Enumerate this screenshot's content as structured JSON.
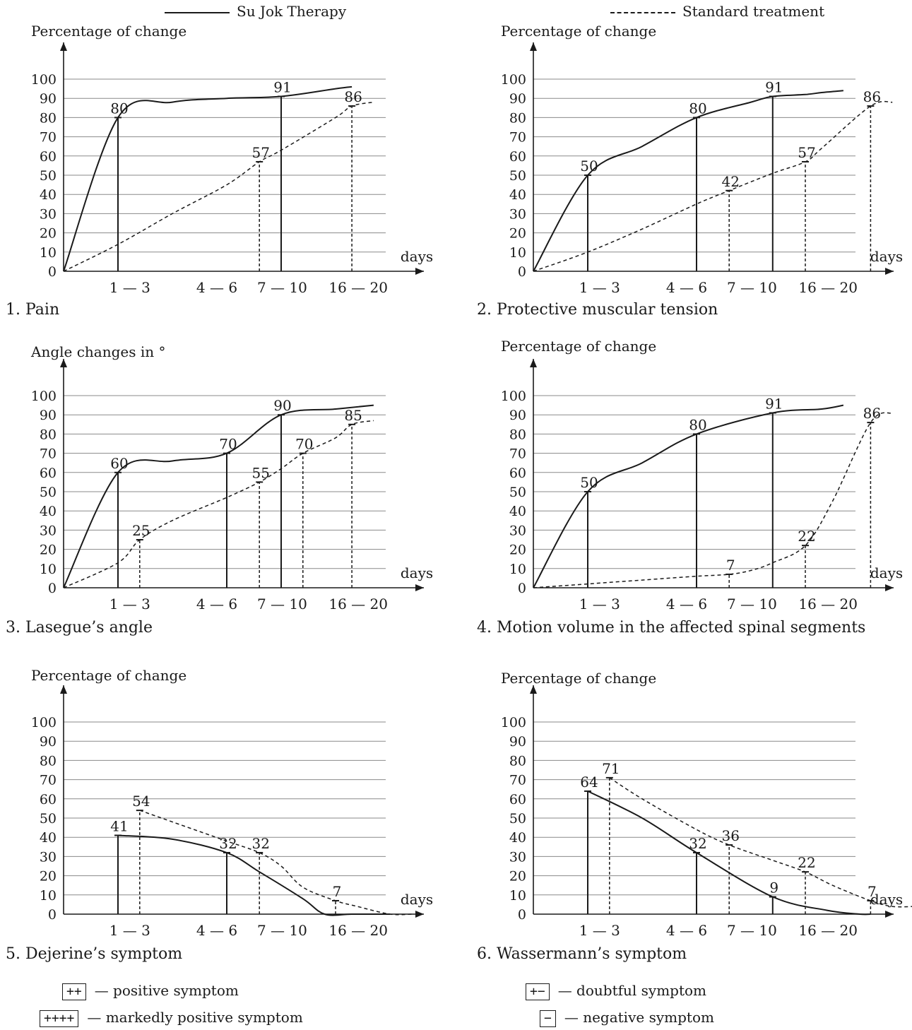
{
  "legend": {
    "su_jok": "Su Jok Therapy",
    "standard": "Standard treatment"
  },
  "symbol_legend": [
    {
      "symbol": "++",
      "text": "— positive symptom"
    },
    {
      "symbol": "++++",
      "text": "— markedly positive symptom"
    },
    {
      "symbol": "+−",
      "text": "— doubtful symptom"
    },
    {
      "symbol": "−",
      "text": "— negative symptom"
    }
  ],
  "chart_data": [
    {
      "type": "line",
      "caption": "1. Pain",
      "ylabel": "Percentage of change",
      "xlabel": "days",
      "categories": [
        "1 — 3",
        "4 — 6",
        "7 — 10",
        "16 — 20"
      ],
      "ylim": [
        0,
        100
      ],
      "yticks": [
        0,
        10,
        20,
        30,
        40,
        50,
        60,
        70,
        80,
        90,
        100
      ],
      "series": [
        {
          "name": "Su Jok Therapy",
          "style": "solid",
          "curve": [
            [
              0,
              0
            ],
            [
              1,
              80
            ],
            [
              2,
              88
            ],
            [
              3,
              90
            ],
            [
              4,
              91
            ],
            [
              5,
              95
            ],
            [
              5.3,
              96
            ]
          ],
          "labeled_points": [
            {
              "x": 1,
              "y": 80
            },
            {
              "x": 4,
              "y": 91
            }
          ]
        },
        {
          "name": "Standard treatment",
          "style": "dashed",
          "curve": [
            [
              0,
              0
            ],
            [
              1,
              14
            ],
            [
              2,
              30
            ],
            [
              3,
              45
            ],
            [
              3.6,
              57
            ],
            [
              4,
              63
            ],
            [
              5,
              80
            ],
            [
              5.3,
              86
            ],
            [
              5.7,
              88
            ]
          ],
          "labeled_points": [
            {
              "x": 3.6,
              "y": 57
            },
            {
              "x": 5.3,
              "y": 86
            }
          ]
        }
      ]
    },
    {
      "type": "line",
      "caption": "2. Protective muscular  tension",
      "ylabel": "Percentage of change",
      "xlabel": "days",
      "categories": [
        "1 — 3",
        "4 — 6",
        "7 — 10",
        "16 — 20"
      ],
      "ylim": [
        0,
        100
      ],
      "yticks": [
        0,
        10,
        20,
        30,
        40,
        50,
        60,
        70,
        80,
        90,
        100
      ],
      "series": [
        {
          "name": "Su Jok Therapy",
          "style": "solid",
          "curve": [
            [
              0,
              0
            ],
            [
              1,
              50
            ],
            [
              2,
              65
            ],
            [
              3,
              80
            ],
            [
              4,
              88
            ],
            [
              4.4,
              91
            ],
            [
              5,
              92
            ],
            [
              5.3,
              93
            ],
            [
              5.7,
              94
            ]
          ],
          "labeled_points": [
            {
              "x": 1,
              "y": 50
            },
            {
              "x": 3,
              "y": 80
            },
            {
              "x": 4.4,
              "y": 91
            }
          ]
        },
        {
          "name": "Standard treatment",
          "style": "dashed",
          "curve": [
            [
              0,
              0
            ],
            [
              1,
              10
            ],
            [
              2,
              22
            ],
            [
              3,
              35
            ],
            [
              3.6,
              42
            ],
            [
              4.4,
              51
            ],
            [
              5,
              57
            ],
            [
              5.3,
              64
            ],
            [
              6.2,
              86
            ],
            [
              6.6,
              88
            ]
          ],
          "labeled_points": [
            {
              "x": 3.6,
              "y": 42
            },
            {
              "x": 5,
              "y": 57
            },
            {
              "x": 6.2,
              "y": 86
            }
          ]
        }
      ]
    },
    {
      "type": "line",
      "caption": "3. Lasegue’s angle",
      "ylabel": "Angle changes in °",
      "xlabel": "days",
      "categories": [
        "1 — 3",
        "4 — 6",
        "7 — 10",
        "16 — 20"
      ],
      "ylim": [
        0,
        100
      ],
      "yticks": [
        0,
        10,
        20,
        30,
        40,
        50,
        60,
        70,
        80,
        90,
        100
      ],
      "series": [
        {
          "name": "Su Jok Therapy",
          "style": "solid",
          "curve": [
            [
              0,
              0
            ],
            [
              1,
              60
            ],
            [
              2,
              66
            ],
            [
              3,
              70
            ],
            [
              4,
              90
            ],
            [
              5,
              93
            ],
            [
              5.7,
              95
            ]
          ],
          "labeled_points": [
            {
              "x": 1,
              "y": 60
            },
            {
              "x": 3,
              "y": 70
            },
            {
              "x": 4,
              "y": 90
            }
          ]
        },
        {
          "name": "Standard treatment",
          "style": "dashed",
          "curve": [
            [
              0,
              0
            ],
            [
              1,
              13
            ],
            [
              1.4,
              25
            ],
            [
              2,
              35
            ],
            [
              3,
              47
            ],
            [
              3.6,
              55
            ],
            [
              4,
              62
            ],
            [
              4.4,
              70
            ],
            [
              5,
              78
            ],
            [
              5.3,
              85
            ],
            [
              5.7,
              87
            ]
          ],
          "labeled_points": [
            {
              "x": 1.4,
              "y": 25
            },
            {
              "x": 3.6,
              "y": 55
            },
            {
              "x": 4.4,
              "y": 70
            },
            {
              "x": 5.3,
              "y": 85
            }
          ]
        }
      ]
    },
    {
      "type": "line",
      "caption": "4. Motion volume in the affected spinal segments",
      "ylabel": "Percentage of change",
      "xlabel": "days",
      "categories": [
        "1 — 3",
        "4 — 6",
        "7 — 10",
        "16 — 20"
      ],
      "ylim": [
        0,
        100
      ],
      "yticks": [
        0,
        10,
        20,
        30,
        40,
        50,
        60,
        70,
        80,
        90,
        100
      ],
      "series": [
        {
          "name": "Su Jok Therapy",
          "style": "solid",
          "curve": [
            [
              0,
              0
            ],
            [
              1,
              50
            ],
            [
              2,
              65
            ],
            [
              3,
              80
            ],
            [
              4.4,
              91
            ],
            [
              5.3,
              93
            ],
            [
              5.7,
              95
            ]
          ],
          "labeled_points": [
            {
              "x": 1,
              "y": 50
            },
            {
              "x": 3,
              "y": 80
            },
            {
              "x": 4.4,
              "y": 91
            }
          ]
        },
        {
          "name": "Standard treatment",
          "style": "dashed",
          "curve": [
            [
              0,
              0
            ],
            [
              1,
              2
            ],
            [
              2,
              4
            ],
            [
              3,
              6
            ],
            [
              3.6,
              7
            ],
            [
              4,
              9
            ],
            [
              4.4,
              13
            ],
            [
              5,
              22
            ],
            [
              5.5,
              45
            ],
            [
              6.2,
              86
            ],
            [
              6.6,
              91
            ]
          ],
          "labeled_points": [
            {
              "x": 3.6,
              "y": 7
            },
            {
              "x": 5,
              "y": 22
            },
            {
              "x": 6.2,
              "y": 86
            }
          ]
        }
      ]
    },
    {
      "type": "line",
      "caption": "5. Dejerine’s symptom",
      "ylabel": "Percentage of change",
      "xlabel": "days",
      "categories": [
        "1 — 3",
        "4 — 6",
        "7 — 10",
        "16 — 20"
      ],
      "ylim": [
        0,
        100
      ],
      "yticks": [
        0,
        10,
        20,
        30,
        40,
        50,
        60,
        70,
        80,
        90,
        100
      ],
      "series": [
        {
          "name": "Su Jok Therapy",
          "style": "solid",
          "curve": [
            [
              1,
              41
            ],
            [
              2,
              39
            ],
            [
              3,
              32
            ],
            [
              3.6,
              22
            ],
            [
              4.4,
              8
            ],
            [
              4.8,
              0
            ],
            [
              5.3,
              0
            ],
            [
              6,
              0
            ]
          ],
          "labeled_points": [
            {
              "x": 1,
              "y": 41
            },
            {
              "x": 3,
              "y": 32
            }
          ]
        },
        {
          "name": "Standard treatment",
          "style": "dashed",
          "curve": [
            [
              1.4,
              54
            ],
            [
              2,
              48
            ],
            [
              3,
              38
            ],
            [
              3.6,
              32
            ],
            [
              4,
              25
            ],
            [
              4.4,
              14
            ],
            [
              5,
              7
            ],
            [
              5.4,
              4
            ],
            [
              6,
              0
            ],
            [
              6.4,
              0
            ]
          ],
          "labeled_points": [
            {
              "x": 1.4,
              "y": 54
            },
            {
              "x": 3.6,
              "y": 32
            },
            {
              "x": 5,
              "y": 7
            }
          ]
        }
      ]
    },
    {
      "type": "line",
      "caption": "6. Wassermann’s symptom",
      "ylabel": "Percentage of change",
      "xlabel": "days",
      "categories": [
        "1 — 3",
        "4 — 6",
        "7 — 10",
        "16 — 20"
      ],
      "ylim": [
        0,
        100
      ],
      "yticks": [
        0,
        10,
        20,
        30,
        40,
        50,
        60,
        70,
        80,
        90,
        100
      ],
      "series": [
        {
          "name": "Su Jok Therapy",
          "style": "solid",
          "curve": [
            [
              1,
              64
            ],
            [
              2,
              50
            ],
            [
              3,
              32
            ],
            [
              4.4,
              9
            ],
            [
              5.4,
              2
            ],
            [
              6,
              0
            ],
            [
              6.2,
              0
            ]
          ],
          "labeled_points": [
            {
              "x": 1,
              "y": 64
            },
            {
              "x": 3,
              "y": 32
            },
            {
              "x": 4.4,
              "y": 9
            }
          ]
        },
        {
          "name": "Standard treatment",
          "style": "dashed",
          "curve": [
            [
              1.4,
              71
            ],
            [
              2,
              60
            ],
            [
              3,
              44
            ],
            [
              3.6,
              36
            ],
            [
              4.4,
              28
            ],
            [
              5,
              22
            ],
            [
              5.5,
              15
            ],
            [
              6.2,
              7
            ],
            [
              6.6,
              4
            ],
            [
              7,
              4
            ]
          ],
          "labeled_points": [
            {
              "x": 1.4,
              "y": 71
            },
            {
              "x": 3.6,
              "y": 36
            },
            {
              "x": 5,
              "y": 22
            },
            {
              "x": 6.2,
              "y": 7
            }
          ]
        }
      ]
    }
  ]
}
